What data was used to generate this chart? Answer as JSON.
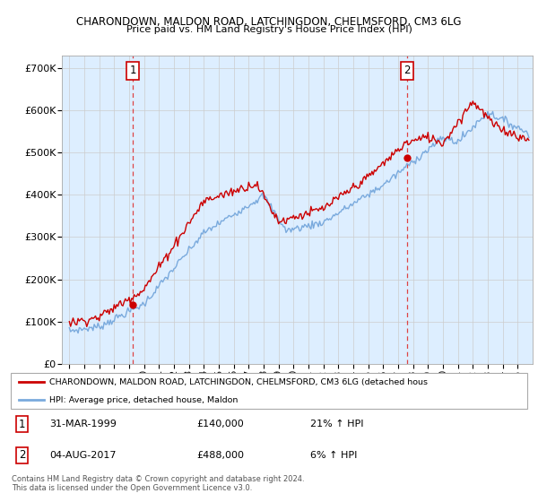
{
  "title1": "CHARONDOWN, MALDON ROAD, LATCHINGDON, CHELMSFORD, CM3 6LG",
  "title2": "Price paid vs. HM Land Registry's House Price Index (HPI)",
  "legend_line1": "CHARONDOWN, MALDON ROAD, LATCHINGDON, CHELMSFORD, CM3 6LG (detached hous",
  "legend_line2": "HPI: Average price, detached house, Maldon",
  "annotation1_date": "31-MAR-1999",
  "annotation1_price": "£140,000",
  "annotation1_hpi": "21% ↑ HPI",
  "annotation2_date": "04-AUG-2017",
  "annotation2_price": "£488,000",
  "annotation2_hpi": "6% ↑ HPI",
  "footnote1": "Contains HM Land Registry data © Crown copyright and database right 2024.",
  "footnote2": "This data is licensed under the Open Government Licence v3.0.",
  "red_color": "#cc0000",
  "blue_color": "#7aaadd",
  "dashed_color": "#dd4444",
  "fill_color": "#ddeeff",
  "background_color": "#ffffff",
  "grid_color": "#cccccc",
  "ylim": [
    0,
    730000
  ],
  "yticks": [
    0,
    100000,
    200000,
    300000,
    400000,
    500000,
    600000,
    700000
  ],
  "ytick_labels": [
    "£0",
    "£100K",
    "£200K",
    "£300K",
    "£400K",
    "£500K",
    "£600K",
    "£700K"
  ],
  "marker1_year": 1999.25,
  "marker1_value": 140000,
  "marker2_year": 2017.6,
  "marker2_value": 488000
}
